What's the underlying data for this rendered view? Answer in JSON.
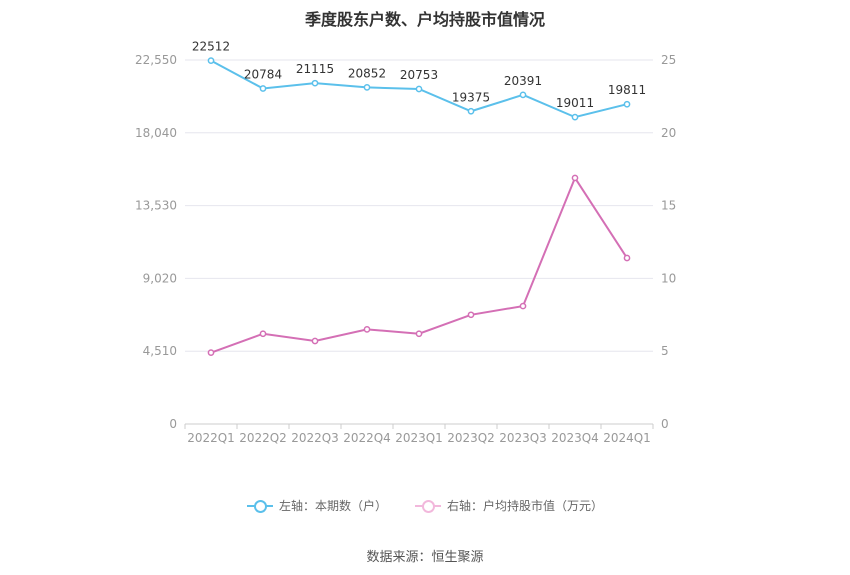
{
  "chart_data": {
    "type": "line",
    "title": "季度股东户数、户均持股市值情况",
    "categories": [
      "2022Q1",
      "2022Q2",
      "2022Q3",
      "2022Q4",
      "2023Q1",
      "2023Q2",
      "2023Q3",
      "2023Q4",
      "2024Q1"
    ],
    "left_axis": {
      "min": 0,
      "max": 22550,
      "ticks": [
        "0",
        "4,510",
        "9,020",
        "13,530",
        "18,040",
        "22,550"
      ]
    },
    "right_axis": {
      "min": 0,
      "max": 25,
      "ticks": [
        "0",
        "5",
        "10",
        "15",
        "20",
        "25"
      ]
    },
    "series": [
      {
        "name": "左轴：本期数（户）",
        "axis": "left",
        "color": "#5bc0eb",
        "values": [
          22512,
          20784,
          21115,
          20852,
          20753,
          19375,
          20391,
          19011,
          19811
        ],
        "labels": [
          "22512",
          "20784",
          "21115",
          "20852",
          "20753",
          "19375",
          "20391",
          "19011",
          "19811"
        ]
      },
      {
        "name": "右轴：户均持股市值（万元）",
        "axis": "right",
        "color": "#d46fb5",
        "values": [
          4.9,
          6.2,
          5.7,
          6.5,
          6.2,
          7.5,
          8.1,
          16.9,
          11.4
        ]
      }
    ],
    "grid": true,
    "legend_position": "bottom"
  },
  "source": "数据来源：恒生聚源"
}
